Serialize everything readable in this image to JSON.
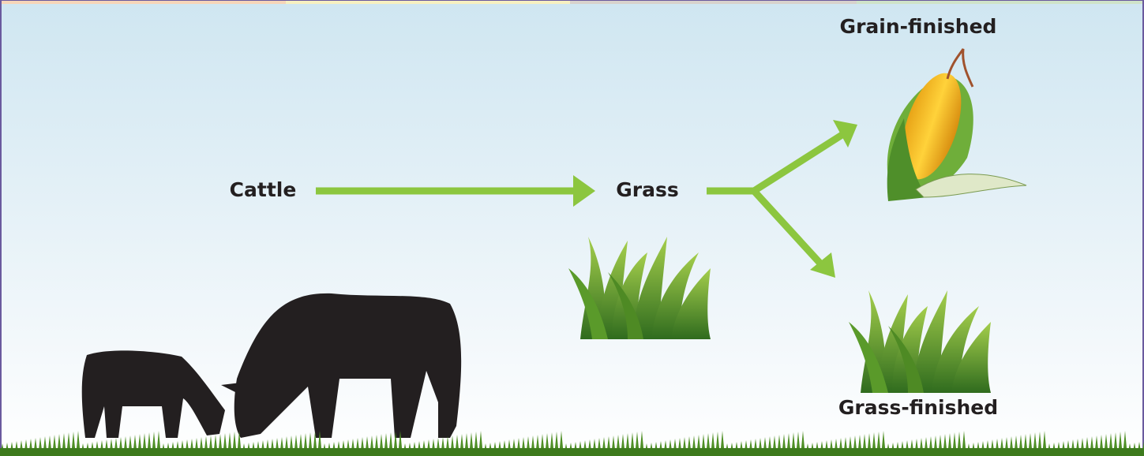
{
  "nodes": [
    {
      "label": "Cattle"
    },
    {
      "label": "Grass"
    },
    {
      "label": "Grain-finished"
    },
    {
      "label": "Grass-finished"
    }
  ]
}
